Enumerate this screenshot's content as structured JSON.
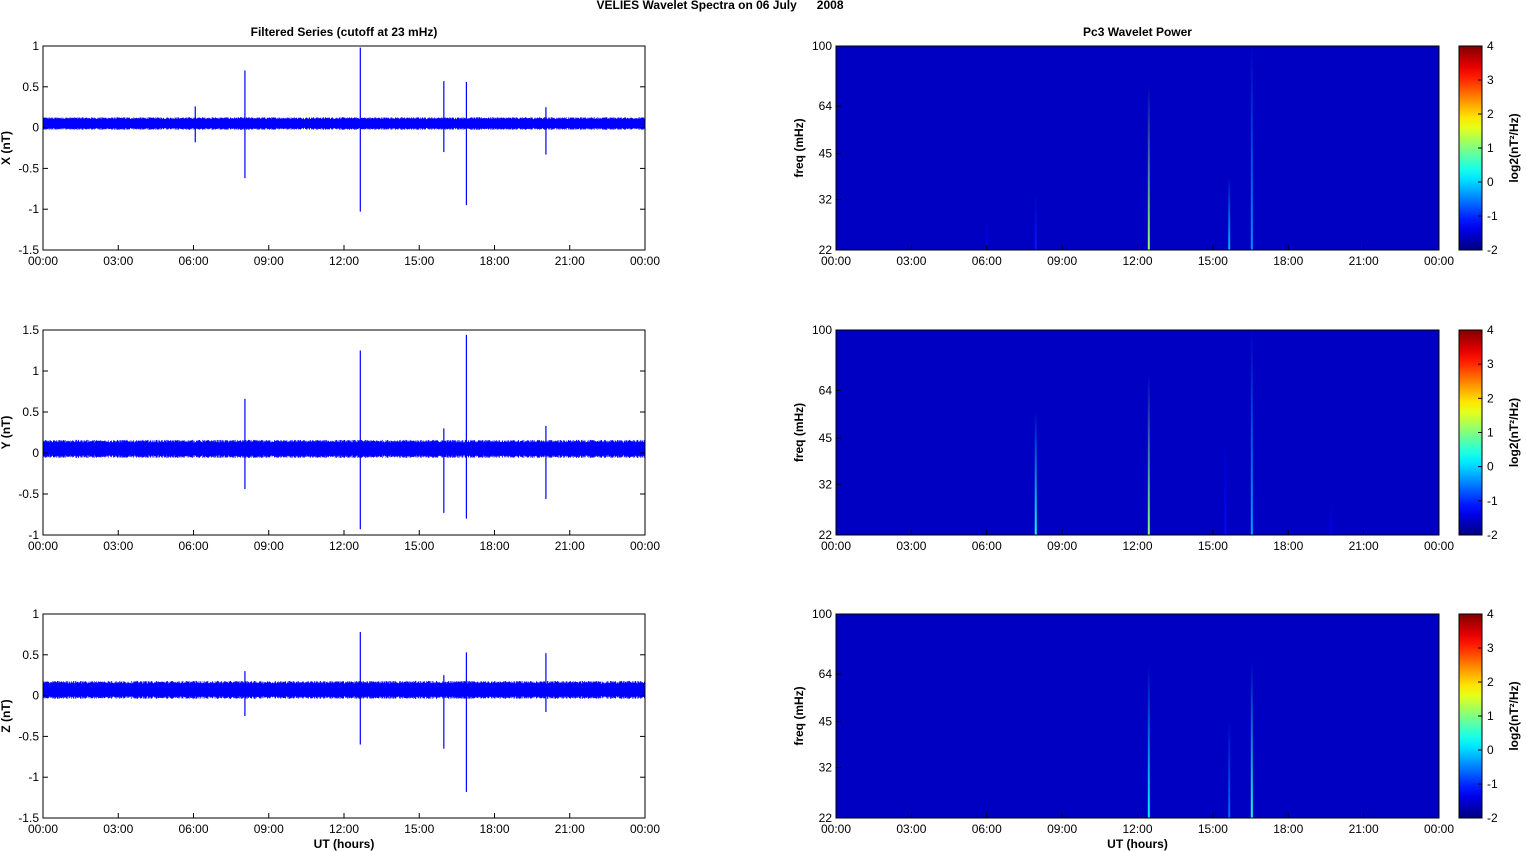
{
  "figure_title_left": "VELIES Wavelet Spectra on 06 July",
  "figure_title_right": "2008",
  "colors": {
    "trace": "#0000ff",
    "spectrogram_bg": "#00008f",
    "axis": "#000000"
  },
  "chart_data": [
    {
      "type": "line",
      "panel": "left-1",
      "title": "Filtered Series (cutoff at 23 mHz)",
      "ylabel": "X (nT)",
      "xlabel": "",
      "x_ticks": [
        "00:00",
        "03:00",
        "06:00",
        "09:00",
        "12:00",
        "15:00",
        "18:00",
        "21:00",
        "00:00"
      ],
      "xlim_hours": [
        0,
        24
      ],
      "ylim": [
        -1.5,
        1
      ],
      "y_ticks": [
        "1",
        "0.5",
        "0",
        "-0.5",
        "-1",
        "-1.5"
      ],
      "y_tick_values": [
        1,
        0.5,
        0,
        -0.5,
        -1,
        -1.5
      ],
      "baseline": {
        "mean": 0.05,
        "amplitude": 0.07
      },
      "spikes": [
        {
          "hour": 6.07,
          "max": 0.26,
          "min": -0.18
        },
        {
          "hour": 8.05,
          "max": 0.7,
          "min": -0.62
        },
        {
          "hour": 12.65,
          "max": 0.98,
          "min": -1.03
        },
        {
          "hour": 15.98,
          "max": 0.57,
          "min": -0.3
        },
        {
          "hour": 16.88,
          "max": 0.56,
          "min": -0.95
        },
        {
          "hour": 20.05,
          "max": 0.25,
          "min": -0.33
        }
      ]
    },
    {
      "type": "line",
      "panel": "left-2",
      "title": "",
      "ylabel": "Y (nT)",
      "xlabel": "",
      "x_ticks": [
        "00:00",
        "03:00",
        "06:00",
        "09:00",
        "12:00",
        "15:00",
        "18:00",
        "21:00",
        "00:00"
      ],
      "xlim_hours": [
        0,
        24
      ],
      "ylim": [
        -1,
        1.5
      ],
      "y_ticks": [
        "1.5",
        "1",
        "0.5",
        "0",
        "-0.5",
        "-1"
      ],
      "y_tick_values": [
        1.5,
        1,
        0.5,
        0,
        -0.5,
        -1
      ],
      "baseline": {
        "mean": 0.05,
        "amplitude": 0.1
      },
      "spikes": [
        {
          "hour": 8.05,
          "max": 0.66,
          "min": -0.44
        },
        {
          "hour": 12.65,
          "max": 1.25,
          "min": -0.93
        },
        {
          "hour": 15.98,
          "max": 0.3,
          "min": -0.73
        },
        {
          "hour": 16.88,
          "max": 1.44,
          "min": -0.8
        },
        {
          "hour": 20.05,
          "max": 0.33,
          "min": -0.56
        }
      ]
    },
    {
      "type": "line",
      "panel": "left-3",
      "title": "",
      "ylabel": "Z (nT)",
      "xlabel": "UT (hours)",
      "x_ticks": [
        "00:00",
        "03:00",
        "06:00",
        "09:00",
        "12:00",
        "15:00",
        "18:00",
        "21:00",
        "00:00"
      ],
      "xlim_hours": [
        0,
        24
      ],
      "ylim": [
        -1.5,
        1
      ],
      "y_ticks": [
        "1",
        "0.5",
        "0",
        "-0.5",
        "-1",
        "-1.5"
      ],
      "y_tick_values": [
        1,
        0.5,
        0,
        -0.5,
        -1,
        -1.5
      ],
      "baseline": {
        "mean": 0.07,
        "amplitude": 0.1
      },
      "spikes": [
        {
          "hour": 8.05,
          "max": 0.3,
          "min": -0.25
        },
        {
          "hour": 12.65,
          "max": 0.78,
          "min": -0.6
        },
        {
          "hour": 15.98,
          "max": 0.25,
          "min": -0.65
        },
        {
          "hour": 16.88,
          "max": 0.53,
          "min": -1.18
        },
        {
          "hour": 20.05,
          "max": 0.52,
          "min": -0.2
        }
      ]
    },
    {
      "type": "heatmap",
      "panel": "right-1",
      "title": "Pc3 Wavelet Power",
      "ylabel": "freq (mHz)",
      "xlabel": "",
      "x_ticks": [
        "00:00",
        "03:00",
        "06:00",
        "09:00",
        "12:00",
        "15:00",
        "18:00",
        "21:00",
        "00:00"
      ],
      "xlim_hours": [
        0,
        24
      ],
      "y_scale": "log",
      "ylim_mhz": [
        22,
        100
      ],
      "y_ticks": [
        "100",
        "64",
        "45",
        "32",
        "22"
      ],
      "y_tick_values": [
        100,
        64,
        45,
        32,
        22
      ],
      "colorbar": {
        "label": "log2(nT²/Hz)",
        "range": [
          -2,
          4
        ],
        "ticks": [
          "4",
          "3",
          "2",
          "1",
          "0",
          "-1",
          "-2"
        ],
        "tick_values": [
          4,
          3,
          2,
          1,
          0,
          -1,
          -2
        ]
      },
      "background_value": -1.6,
      "streaks": [
        {
          "hour": 6.0,
          "fmax": 28,
          "peak": -1.3
        },
        {
          "hour": 7.95,
          "fmax": 34,
          "peak": -1.1
        },
        {
          "hour": 12.45,
          "fmax": 75,
          "peak": 1.1
        },
        {
          "hour": 15.65,
          "fmax": 38,
          "peak": -0.2
        },
        {
          "hour": 16.55,
          "fmax": 100,
          "peak": -0.4
        }
      ]
    },
    {
      "type": "heatmap",
      "panel": "right-2",
      "title": "",
      "ylabel": "freq (mHz)",
      "xlabel": "",
      "x_ticks": [
        "00:00",
        "03:00",
        "06:00",
        "09:00",
        "12:00",
        "15:00",
        "18:00",
        "21:00",
        "00:00"
      ],
      "xlim_hours": [
        0,
        24
      ],
      "y_scale": "log",
      "ylim_mhz": [
        22,
        100
      ],
      "y_ticks": [
        "100",
        "64",
        "45",
        "32",
        "22"
      ],
      "y_tick_values": [
        100,
        64,
        45,
        32,
        22
      ],
      "colorbar": {
        "label": "log2(nT²/Hz)",
        "range": [
          -2,
          4
        ],
        "ticks": [
          "4",
          "3",
          "2",
          "1",
          "0",
          "-1",
          "-2"
        ],
        "tick_values": [
          4,
          3,
          2,
          1,
          0,
          -1,
          -2
        ]
      },
      "background_value": -1.6,
      "streaks": [
        {
          "hour": 7.95,
          "fmax": 55,
          "peak": 0.3
        },
        {
          "hour": 12.45,
          "fmax": 72,
          "peak": 1.0
        },
        {
          "hour": 15.5,
          "fmax": 45,
          "peak": -1.2
        },
        {
          "hour": 16.55,
          "fmax": 100,
          "peak": -0.3
        },
        {
          "hour": 19.7,
          "fmax": 28,
          "peak": -1.3
        }
      ]
    },
    {
      "type": "heatmap",
      "panel": "right-3",
      "title": "",
      "ylabel": "freq (mHz)",
      "xlabel": "UT (hours)",
      "x_ticks": [
        "00:00",
        "03:00",
        "06:00",
        "09:00",
        "12:00",
        "15:00",
        "18:00",
        "21:00",
        "00:00"
      ],
      "xlim_hours": [
        0,
        24
      ],
      "y_scale": "log",
      "ylim_mhz": [
        22,
        100
      ],
      "y_ticks": [
        "100",
        "64",
        "45",
        "32",
        "22"
      ],
      "y_tick_values": [
        100,
        64,
        45,
        32,
        22
      ],
      "colorbar": {
        "label": "log2(nT²/Hz)",
        "range": [
          -2,
          4
        ],
        "ticks": [
          "4",
          "3",
          "2",
          "1",
          "0",
          "-1",
          "-2"
        ],
        "tick_values": [
          4,
          3,
          2,
          1,
          0,
          -1,
          -2
        ]
      },
      "background_value": -1.6,
      "streaks": [
        {
          "hour": 12.45,
          "fmax": 68,
          "peak": 0.2
        },
        {
          "hour": 15.65,
          "fmax": 45,
          "peak": -0.6
        },
        {
          "hour": 16.55,
          "fmax": 70,
          "peak": 0.4
        }
      ]
    }
  ]
}
